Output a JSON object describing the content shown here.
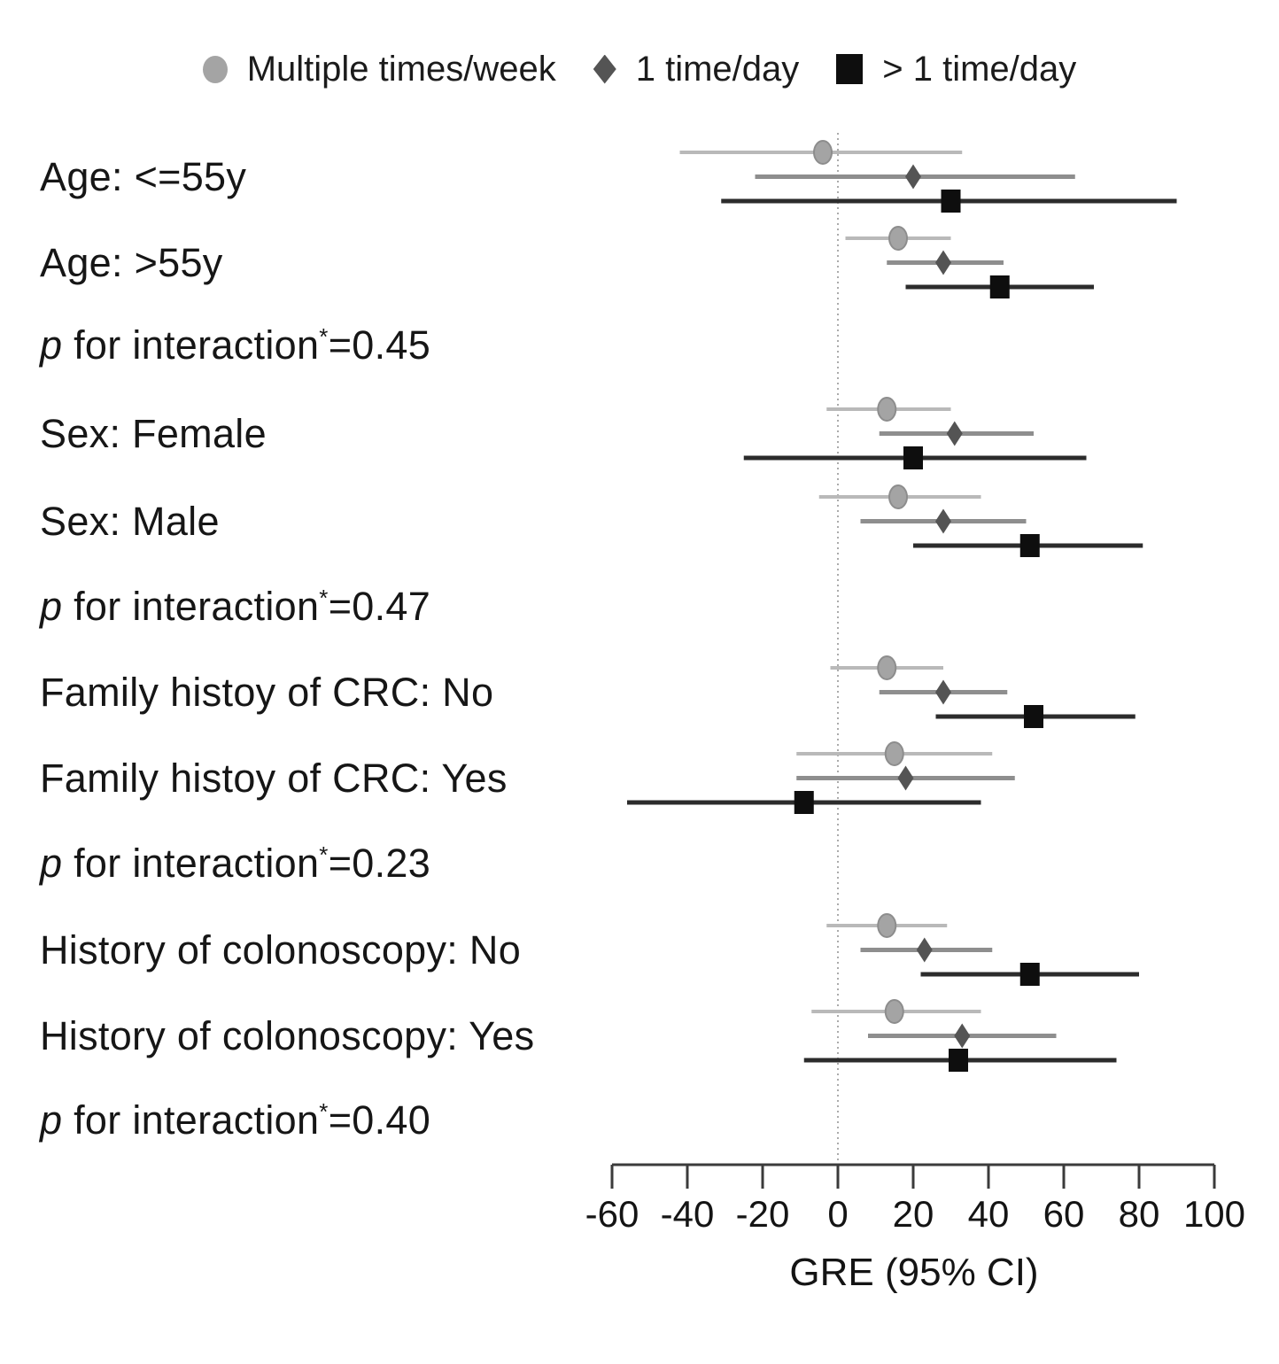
{
  "chart_data": {
    "type": "forest",
    "xlabel": "GRE (95% CI)",
    "x_ticks": [
      -60,
      -40,
      -20,
      0,
      20,
      40,
      60,
      80,
      100
    ],
    "xlim": [
      -60,
      100
    ],
    "reference_line_x": 0,
    "legend_position": "top",
    "grid": false,
    "series": [
      {
        "name": "Multiple times/week",
        "marker": "circle",
        "marker_color": "#a4a4a4",
        "marker_edge": "#8d8d8d",
        "line_color": "#b9b9b9"
      },
      {
        "name": "1 time/day",
        "marker": "diamond",
        "marker_color": "#545454",
        "marker_edge": "#545454",
        "line_color": "#8e8e8e"
      },
      {
        "name": "> 1 time/day",
        "marker": "square",
        "marker_color": "#0e0e0e",
        "marker_edge": "#0e0e0e",
        "line_color": "#2c2c2c"
      }
    ],
    "rows": [
      {
        "type": "group",
        "label": "Age: <=55y",
        "values": [
          {
            "series": "Multiple times/week",
            "est": -4,
            "lo": -42,
            "hi": 33
          },
          {
            "series": "1 time/day",
            "est": 20,
            "lo": -22,
            "hi": 63
          },
          {
            "series": "> 1 time/day",
            "est": 30,
            "lo": -31,
            "hi": 90
          }
        ]
      },
      {
        "type": "group",
        "label": "Age: >55y",
        "values": [
          {
            "series": "Multiple times/week",
            "est": 16,
            "lo": 2,
            "hi": 30
          },
          {
            "series": "1 time/day",
            "est": 28,
            "lo": 13,
            "hi": 44
          },
          {
            "series": "> 1 time/day",
            "est": 43,
            "lo": 18,
            "hi": 68
          }
        ]
      },
      {
        "type": "pvalue",
        "p": "p",
        "text": " for interaction",
        "sup": "*",
        "value": "=0.45"
      },
      {
        "type": "group",
        "label": "Sex: Female",
        "values": [
          {
            "series": "Multiple times/week",
            "est": 13,
            "lo": -3,
            "hi": 30
          },
          {
            "series": "1 time/day",
            "est": 31,
            "lo": 11,
            "hi": 52
          },
          {
            "series": "> 1 time/day",
            "est": 20,
            "lo": -25,
            "hi": 66
          }
        ]
      },
      {
        "type": "group",
        "label": "Sex: Male",
        "values": [
          {
            "series": "Multiple times/week",
            "est": 16,
            "lo": -5,
            "hi": 38
          },
          {
            "series": "1 time/day",
            "est": 28,
            "lo": 6,
            "hi": 50
          },
          {
            "series": "> 1 time/day",
            "est": 51,
            "lo": 20,
            "hi": 81
          }
        ]
      },
      {
        "type": "pvalue",
        "p": "p",
        "text": " for interaction",
        "sup": "*",
        "value": "=0.47"
      },
      {
        "type": "group",
        "label": "Family histoy of CRC: No",
        "values": [
          {
            "series": "Multiple times/week",
            "est": 13,
            "lo": -2,
            "hi": 28
          },
          {
            "series": "1 time/day",
            "est": 28,
            "lo": 11,
            "hi": 45
          },
          {
            "series": "> 1 time/day",
            "est": 52,
            "lo": 26,
            "hi": 79
          }
        ]
      },
      {
        "type": "group",
        "label": "Family histoy of CRC: Yes",
        "values": [
          {
            "series": "Multiple times/week",
            "est": 15,
            "lo": -11,
            "hi": 41
          },
          {
            "series": "1 time/day",
            "est": 18,
            "lo": -11,
            "hi": 47
          },
          {
            "series": "> 1 time/day",
            "est": -9,
            "lo": -56,
            "hi": 38
          }
        ]
      },
      {
        "type": "pvalue",
        "p": "p",
        "text": " for interaction",
        "sup": "*",
        "value": "=0.23"
      },
      {
        "type": "group",
        "label": "History of colonoscopy: No",
        "values": [
          {
            "series": "Multiple times/week",
            "est": 13,
            "lo": -3,
            "hi": 29
          },
          {
            "series": "1 time/day",
            "est": 23,
            "lo": 6,
            "hi": 41
          },
          {
            "series": "> 1 time/day",
            "est": 51,
            "lo": 22,
            "hi": 80
          }
        ]
      },
      {
        "type": "group",
        "label": "History of colonoscopy: Yes",
        "values": [
          {
            "series": "Multiple times/week",
            "est": 15,
            "lo": -7,
            "hi": 38
          },
          {
            "series": "1 time/day",
            "est": 33,
            "lo": 8,
            "hi": 58
          },
          {
            "series": "> 1 time/day",
            "est": 32,
            "lo": -9,
            "hi": 74
          }
        ]
      },
      {
        "type": "pvalue",
        "p": "p",
        "text": " for interaction",
        "sup": "*",
        "value": "=0.40"
      }
    ]
  }
}
